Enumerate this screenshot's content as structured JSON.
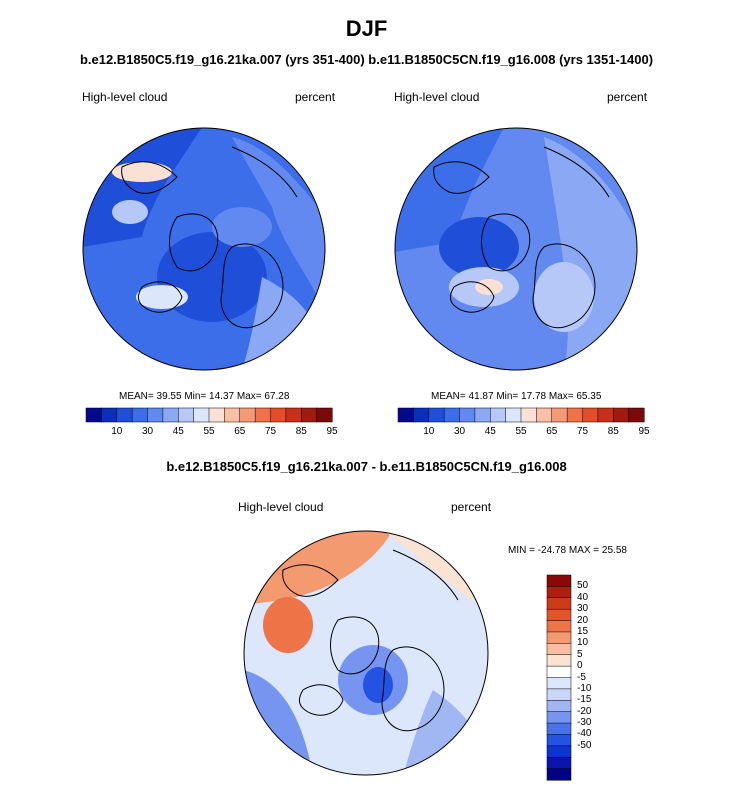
{
  "page": {
    "title": "DJF",
    "subtitle": "b.e12.B1850C5.f19_g16.21ka.007 (yrs 351-400) b.e11.B1850C5CN.f19_g16.008 (yrs 1351-1400)",
    "diff_title": "b.e12.B1850C5.f19_g16.21ka.007 - b.e11.B1850C5CN.f19_g16.008"
  },
  "colors": {
    "continent_outline": "#000000",
    "abs_scale": [
      "#06088f",
      "#0a2fb9",
      "#1f4fd9",
      "#3d6ee9",
      "#6189f0",
      "#8aa8f4",
      "#b5c8f8",
      "#dbe6fb",
      "#fbe1d5",
      "#f9c0a5",
      "#f59a76",
      "#ef7148",
      "#e34d28",
      "#c8301a",
      "#a01a10",
      "#7a0a08"
    ],
    "diff_scale": [
      "#000088",
      "#0a14b0",
      "#0b35d2",
      "#2452e3",
      "#4a73eb",
      "#7595f0",
      "#a0b7f4",
      "#c9d7f8",
      "#dce7fb",
      "#ffffff",
      "#fbe3d3",
      "#f7c0a2",
      "#f39a70",
      "#ee7447",
      "#e55427",
      "#cd3b17",
      "#ae200d",
      "#8a0906"
    ]
  },
  "chart_data": [
    {
      "type": "heatmap",
      "name": "left-panel",
      "projection": "north polar stereographic",
      "title_left": "High-level cloud",
      "title_right": "percent",
      "stats_text": "MEAN=  39.55  Min=  14.37  Max=  67.28",
      "stats": {
        "mean": 39.55,
        "min": 14.37,
        "max": 67.28
      },
      "colorbar_levels": [
        5,
        10,
        20,
        30,
        40,
        45,
        50,
        55,
        60,
        65,
        70,
        75,
        80,
        85,
        90,
        95
      ],
      "colorbar_labels": [
        "10",
        "30",
        "45",
        "55",
        "65",
        "75",
        "85",
        "95"
      ],
      "field_description": "blue tones dominate (25-50%); whitish patches over Alaska/Bering region and north Atlantic/Greenland sea"
    },
    {
      "type": "heatmap",
      "name": "right-panel",
      "projection": "north polar stereographic",
      "title_left": "High-level cloud",
      "title_right": "percent",
      "stats_text": "MEAN=  41.87  Min=  17.78  Max=  65.35",
      "stats": {
        "mean": 41.87,
        "min": 17.78,
        "max": 65.35
      },
      "colorbar_levels": [
        5,
        10,
        20,
        30,
        40,
        45,
        50,
        55,
        60,
        65,
        70,
        75,
        80,
        85,
        90,
        95
      ],
      "colorbar_labels": [
        "10",
        "30",
        "45",
        "55",
        "65",
        "75",
        "85",
        "95"
      ],
      "field_description": "mostly medium/light blue; whitish patch north Atlantic near Greenland"
    },
    {
      "type": "heatmap",
      "name": "difference-panel",
      "projection": "north polar stereographic",
      "title_left": "High-level cloud",
      "title_right": "percent",
      "stats_text": "MIN = -24.78 MAX =  25.58",
      "stats": {
        "min": -24.78,
        "max": 25.58
      },
      "colorbar_levels": [
        -50,
        -40,
        -30,
        -20,
        -15,
        -10,
        -5,
        0,
        5,
        10,
        15,
        20,
        30,
        40,
        50
      ],
      "colorbar_labels": [
        "50",
        "40",
        "30",
        "20",
        "15",
        "10",
        "5",
        "0",
        "-5",
        "-10",
        "-15",
        "-20",
        "-30",
        "-40",
        "-50"
      ],
      "field_description": "positive anomalies (reds) over Alaska/Bering, negative (blues) over Greenland/North Atlantic and Eurasia"
    }
  ]
}
